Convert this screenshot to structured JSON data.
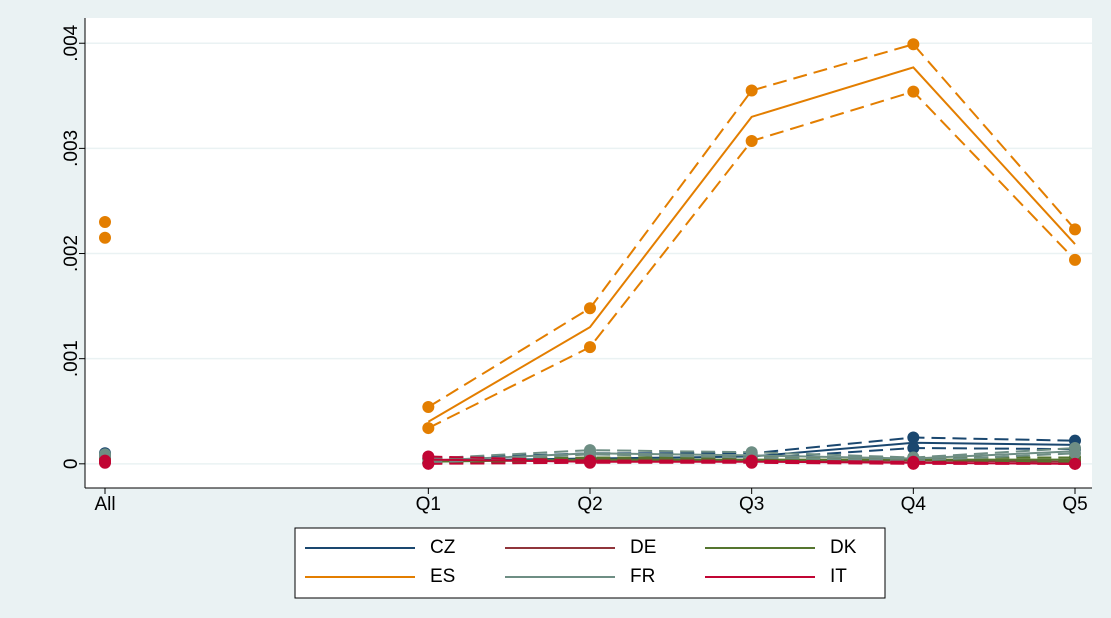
{
  "chart_data": {
    "type": "line",
    "categories": [
      "All",
      null,
      "Q1",
      "Q2",
      "Q3",
      "Q4",
      "Q5"
    ],
    "ylim": [
      -0.00023,
      0.00424
    ],
    "yticks": [
      0,
      {
        "value": 0.001,
        "label": ".001"
      },
      {
        "value": 0.002,
        "label": ".002"
      },
      {
        "value": 0.003,
        "label": ".003"
      },
      {
        "value": 0.004,
        "label": ".004"
      }
    ],
    "grid": true,
    "legend": "bottom",
    "series": [
      {
        "name": "CZ",
        "color": "#1a476f",
        "values": [
          null,
          null,
          3e-05,
          5e-05,
          7e-05,
          0.0002,
          0.00018
        ],
        "ci_high": [
          0.0001,
          null,
          5e-05,
          0.0001,
          0.0001,
          0.00025,
          0.00022
        ],
        "ci_low": [
          8e-05,
          null,
          1e-05,
          3e-05,
          5e-05,
          0.00015,
          0.00014
        ]
      },
      {
        "name": "DE",
        "color": "#90353b",
        "values": [
          null,
          null,
          3e-05,
          3e-05,
          3e-05,
          3e-05,
          2e-05
        ],
        "ci_high": [
          4e-05,
          null,
          5e-05,
          4e-05,
          4e-05,
          4e-05,
          3e-05
        ],
        "ci_low": [
          2e-05,
          null,
          1e-05,
          2e-05,
          2e-05,
          2e-05,
          1e-05
        ]
      },
      {
        "name": "DK",
        "color": "#55752f",
        "values": [
          null,
          null,
          2e-05,
          4e-05,
          4e-05,
          4e-05,
          4e-05
        ],
        "ci_high": [
          5e-05,
          null,
          4e-05,
          6e-05,
          6e-05,
          6e-05,
          6e-05
        ],
        "ci_low": [
          2e-05,
          null,
          1e-05,
          2e-05,
          2e-05,
          2e-05,
          2e-05
        ]
      },
      {
        "name": "ES",
        "color": "#e37e00",
        "values": [
          null,
          null,
          0.0004,
          0.0013,
          0.0033,
          0.00377,
          0.00209
        ],
        "ci_high": [
          0.0023,
          null,
          0.00054,
          0.00148,
          0.00355,
          0.00399,
          0.00223
        ],
        "ci_low": [
          0.00215,
          null,
          0.00034,
          0.00111,
          0.00307,
          0.00354,
          0.00194
        ]
      },
      {
        "name": "FR",
        "color": "#6e8e84",
        "values": [
          null,
          null,
          3e-05,
          0.0001,
          8e-05,
          5e-05,
          0.00012
        ],
        "ci_high": [
          9e-05,
          null,
          5e-05,
          0.00013,
          0.00011,
          6e-05,
          0.00015
        ],
        "ci_low": [
          7e-05,
          null,
          1e-05,
          9e-05,
          6e-05,
          3e-05,
          0.0001
        ]
      },
      {
        "name": "IT",
        "color": "#c10534",
        "values": [
          null,
          null,
          4e-05,
          2e-05,
          2e-05,
          1e-05,
          0
        ],
        "ci_high": [
          3e-05,
          null,
          7e-05,
          3e-05,
          3e-05,
          2e-05,
          0
        ],
        "ci_low": [
          1e-05,
          null,
          0,
          1e-05,
          1e-05,
          0,
          0
        ]
      }
    ]
  }
}
